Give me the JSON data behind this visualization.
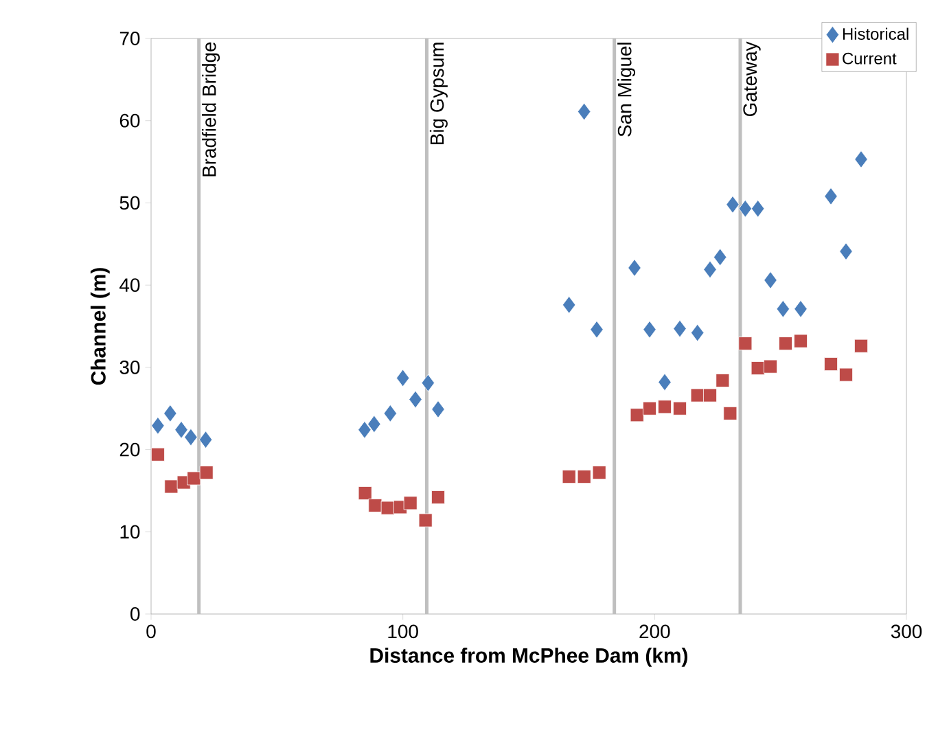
{
  "chart_data": {
    "type": "scatter",
    "xlabel": "Distance from McPhee Dam (km)",
    "ylabel": "Channel (m)",
    "xlim": [
      0,
      300
    ],
    "xticks": [
      0,
      100,
      200,
      300
    ],
    "ylim": [
      0,
      70
    ],
    "yticks": [
      0,
      10,
      20,
      30,
      40,
      50,
      60,
      70
    ],
    "grid": false,
    "legend": "top right",
    "series": [
      {
        "name": "Historical",
        "color": "#4a7ebb",
        "marker": "diamond",
        "x": [
          2.7,
          7.6,
          12,
          15.8,
          21.7,
          84.8,
          88.6,
          95,
          100,
          105,
          110,
          114,
          166,
          172,
          177,
          192,
          198,
          204,
          210,
          217,
          222,
          226,
          231,
          236,
          241,
          246,
          251,
          258,
          270,
          276,
          282
        ],
        "values": [
          22.9,
          24.4,
          22.4,
          21.5,
          21.2,
          22.4,
          23.1,
          24.4,
          28.7,
          26.1,
          28.1,
          24.9,
          37.6,
          61.1,
          34.6,
          42.1,
          34.6,
          28.2,
          34.7,
          34.2,
          41.9,
          43.4,
          49.8,
          49.3,
          49.3,
          40.6,
          37.1,
          37.1,
          50.8,
          44.1,
          55.3
        ]
      },
      {
        "name": "Current",
        "color": "#be4b48",
        "marker": "square",
        "x": [
          2.7,
          8,
          13,
          17,
          22,
          85,
          89,
          94,
          99,
          103,
          109,
          114,
          166,
          172,
          178,
          193,
          198,
          204,
          210,
          217,
          222,
          227,
          230,
          236,
          241,
          246,
          252,
          258,
          270,
          276,
          282
        ],
        "values": [
          19.4,
          15.5,
          16.0,
          16.5,
          17.2,
          14.7,
          13.2,
          12.9,
          13.0,
          13.5,
          11.4,
          14.2,
          16.7,
          16.7,
          17.2,
          24.2,
          25.0,
          25.2,
          25.0,
          26.6,
          26.6,
          28.4,
          24.4,
          32.9,
          29.9,
          30.1,
          32.9,
          33.2,
          30.4,
          29.1,
          32.6
        ]
      }
    ],
    "ref_lines": [
      {
        "axis": "x",
        "value": 19,
        "label": "Bradfield Bridge",
        "color": "#bfbfbf"
      },
      {
        "axis": "x",
        "value": 109.5,
        "label": "Big Gypsum",
        "color": "#bfbfbf"
      },
      {
        "axis": "x",
        "value": 184,
        "label": "San Miguel",
        "color": "#bfbfbf"
      },
      {
        "axis": "x",
        "value": 234,
        "label": "Gateway",
        "color": "#bfbfbf"
      }
    ]
  }
}
